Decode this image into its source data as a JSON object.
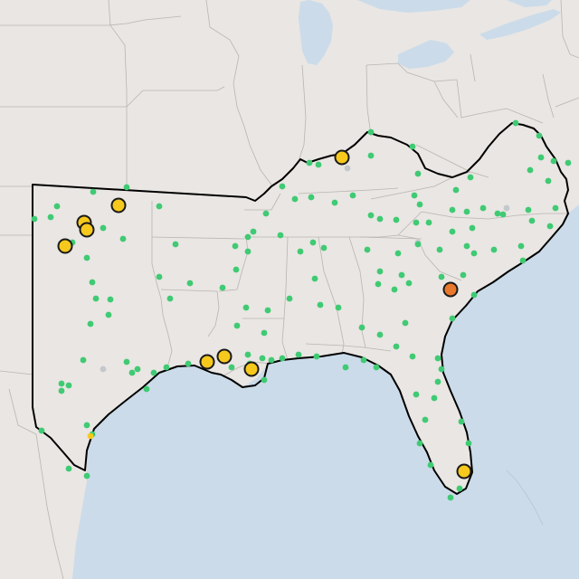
{
  "map": {
    "colors": {
      "land": "#e9e6e3",
      "water": "#cbdbe9",
      "region_outline": "#000000",
      "state_border": "#b9b6b1"
    },
    "marker_colors": {
      "green": "#3fca73",
      "yellow": "#f7c91d",
      "orange": "#e8782c",
      "gray": "#c4c8cc"
    }
  }
}
